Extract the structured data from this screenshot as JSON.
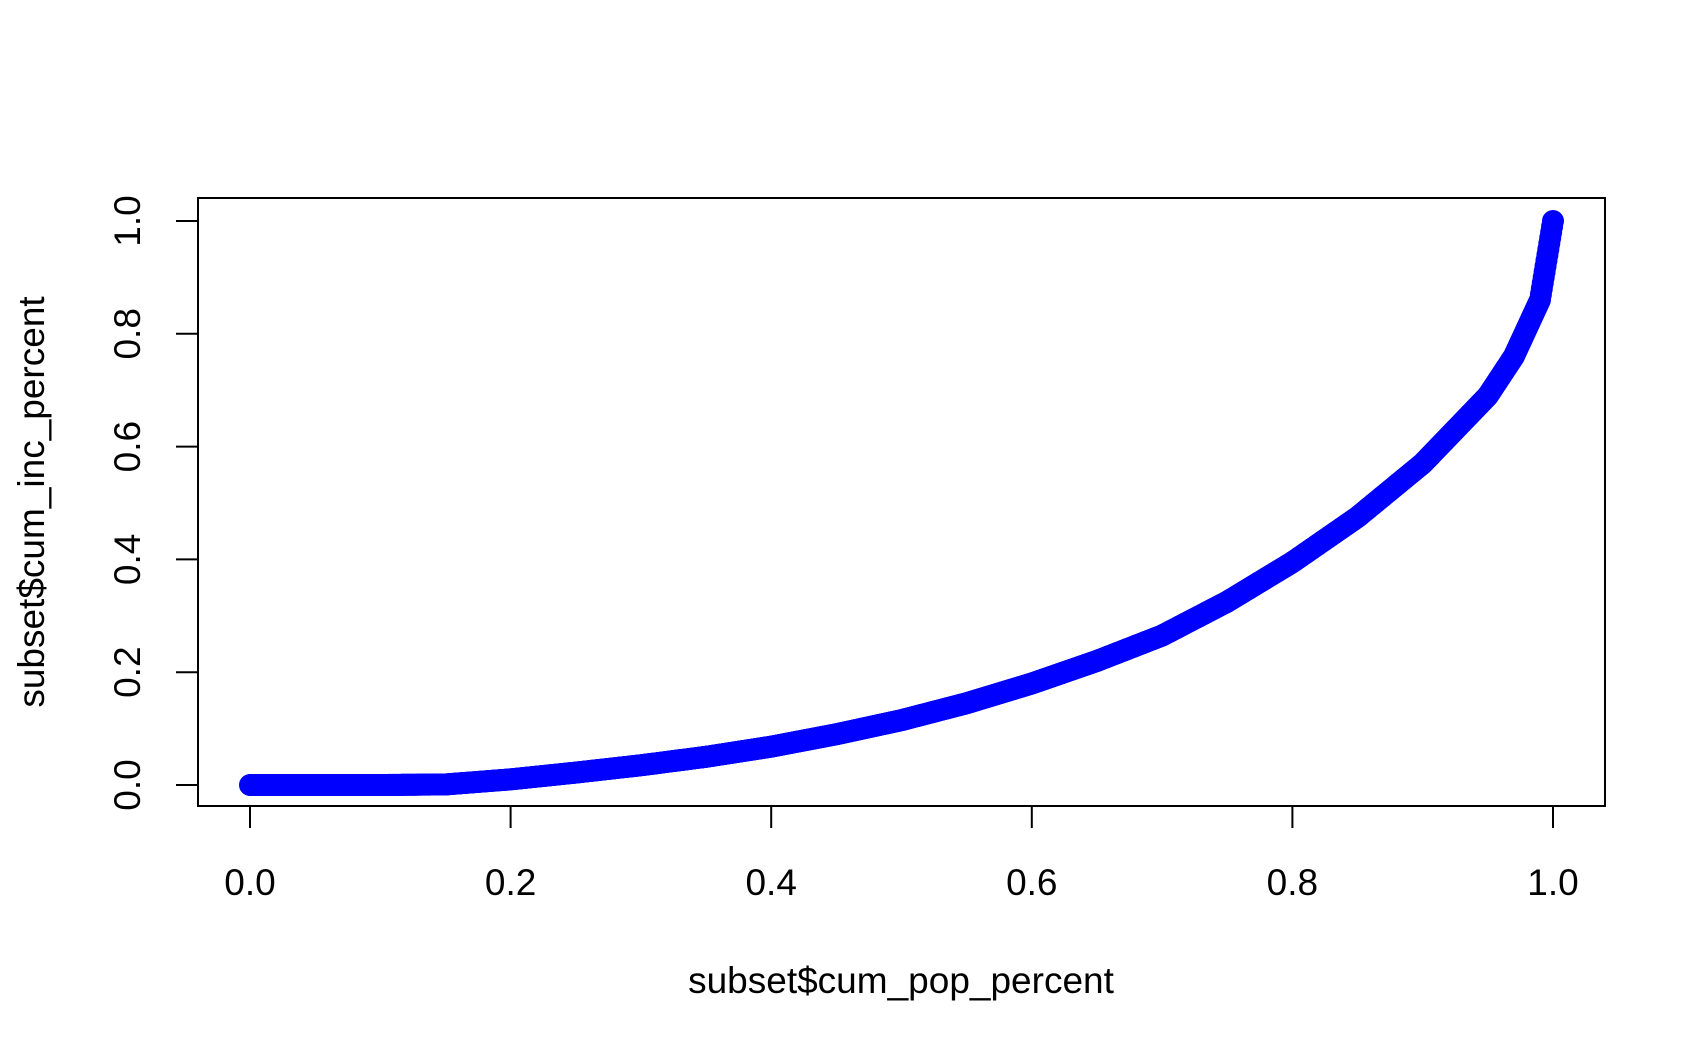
{
  "chart_data": {
    "type": "scatter",
    "title": "",
    "xlabel": "subset$cum_pop_percent",
    "ylabel": "subset$cum_inc_percent",
    "xlim": [
      0.0,
      1.0
    ],
    "ylim": [
      0.0,
      1.0
    ],
    "xticks": [
      "0.0",
      "0.2",
      "0.4",
      "0.6",
      "0.8",
      "1.0"
    ],
    "yticks": [
      "0.0",
      "0.2",
      "0.4",
      "0.6",
      "0.8",
      "1.0"
    ],
    "grid": false,
    "legend": "none",
    "point_color": "#0000ff",
    "x": [
      0.0,
      0.05,
      0.1,
      0.15,
      0.2,
      0.25,
      0.3,
      0.35,
      0.4,
      0.45,
      0.5,
      0.55,
      0.6,
      0.65,
      0.7,
      0.75,
      0.8,
      0.85,
      0.9,
      0.95,
      0.97,
      0.99,
      1.0
    ],
    "y": [
      0.0,
      0.0,
      0.0,
      0.001,
      0.01,
      0.022,
      0.035,
      0.05,
      0.068,
      0.09,
      0.115,
      0.145,
      0.18,
      0.22,
      0.265,
      0.325,
      0.395,
      0.475,
      0.57,
      0.69,
      0.76,
      0.86,
      1.0
    ]
  }
}
